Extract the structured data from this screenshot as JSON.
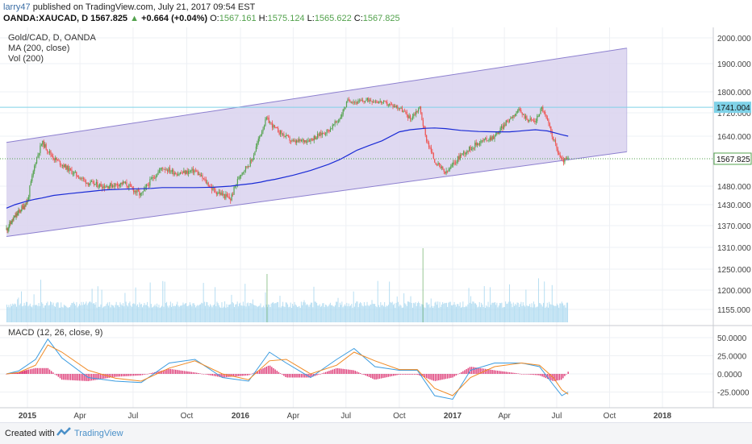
{
  "header": {
    "author": "larry47",
    "published": "published on TradingView.com, July 21, 2017 09:54 EST",
    "symbol": "OANDA:XAUCAD, D",
    "last": "1567.825",
    "change": "+0.664 (+0.04%)",
    "o_label": "O:",
    "o": "1567.161",
    "h_label": "H:",
    "h": "1575.124",
    "l_label": "L:",
    "l": "1565.622",
    "c_label": "C:",
    "c": "1567.825"
  },
  "legend": {
    "line1": "Gold/CAD, D, OANDA",
    "line2": "MA (200, close)",
    "line3": "Vol (200)",
    "macd": "MACD (12, 26, close, 9)"
  },
  "footer": {
    "created_with": "Created with",
    "brand": "TradingView"
  },
  "colors": {
    "channel_fill": "#d9d2ee",
    "channel_line": "#8c7fcf",
    "ma": "#1a2bd6",
    "up": "#53a24d",
    "down": "#ef5350",
    "macd": "#3a9be0",
    "signal": "#f08a24",
    "hist": "#d81b60",
    "hline": "#7fd2e8",
    "volume": "#9fd3ee"
  },
  "chart_data": [
    {
      "type": "line",
      "title": "Gold/CAD, D, OANDA",
      "x_ticks": [
        "2015",
        "Apr",
        "Jul",
        "Oct",
        "2016",
        "Apr",
        "Jul",
        "Oct",
        "2017",
        "Apr",
        "Jul",
        "Oct",
        "2018"
      ],
      "y_ticks": [
        2000,
        1900,
        1800,
        1720,
        1640,
        1480,
        1430,
        1370,
        1310,
        1250,
        1200,
        1155
      ],
      "y_axis_labels": [
        "2000.000",
        "1900.000",
        "1800.000",
        "1720.000",
        "1640.000",
        "1480.000",
        "1430.000",
        "1370.000",
        "1310.000",
        "1250.000",
        "1200.000",
        "1155.000"
      ],
      "x": [
        "2014-11-10",
        "2014-12-01",
        "2015-01-01",
        "2015-01-15",
        "2015-01-26",
        "2015-02-15",
        "2015-03-15",
        "2015-04-15",
        "2015-05-15",
        "2015-06-15",
        "2015-07-15",
        "2015-08-01",
        "2015-08-20",
        "2015-09-15",
        "2015-10-15",
        "2015-11-15",
        "2015-12-15",
        "2016-01-01",
        "2016-01-20",
        "2016-02-05",
        "2016-02-15",
        "2016-03-01",
        "2016-04-01",
        "2016-05-01",
        "2016-06-01",
        "2016-06-20",
        "2016-07-05",
        "2016-07-20",
        "2016-08-10",
        "2016-09-01",
        "2016-10-01",
        "2016-10-20",
        "2016-11-05",
        "2016-11-15",
        "2016-12-01",
        "2016-12-20",
        "2017-01-15",
        "2017-02-15",
        "2017-03-15",
        "2017-04-10",
        "2017-04-25",
        "2017-05-10",
        "2017-05-25",
        "2017-06-05",
        "2017-06-15",
        "2017-07-01",
        "2017-07-10",
        "2017-07-21"
      ],
      "series": [
        {
          "name": "Gold/CAD",
          "values": [
            1360,
            1395,
            1440,
            1560,
            1620,
            1570,
            1530,
            1490,
            1480,
            1490,
            1455,
            1500,
            1540,
            1520,
            1530,
            1470,
            1445,
            1520,
            1560,
            1650,
            1700,
            1665,
            1620,
            1630,
            1660,
            1700,
            1770,
            1760,
            1770,
            1760,
            1740,
            1700,
            1740,
            1640,
            1560,
            1520,
            1580,
            1620,
            1640,
            1700,
            1730,
            1700,
            1690,
            1740,
            1690,
            1600,
            1560,
            1567.825
          ]
        },
        {
          "name": "MA (200, close)",
          "values": [
            1420,
            1430,
            1440,
            1445,
            1448,
            1455,
            1460,
            1465,
            1470,
            1472,
            1473,
            1474,
            1476,
            1476,
            1476,
            1477,
            1480,
            1484,
            1488,
            1493,
            1497,
            1502,
            1515,
            1530,
            1550,
            1565,
            1580,
            1595,
            1610,
            1625,
            1655,
            1662,
            1665,
            1667,
            1668,
            1666,
            1660,
            1656,
            1655,
            1655,
            1657,
            1660,
            1662,
            1660,
            1658,
            1650,
            1645,
            1640
          ]
        }
      ],
      "last_price": 1567.825,
      "horizontal_line": 1741.004,
      "channel": {
        "upper": [
          [
            "2014-11-10",
            1620
          ],
          [
            "2017-10-31",
            1960
          ]
        ],
        "lower": [
          [
            "2014-11-10",
            1340
          ],
          [
            "2017-10-31",
            1590
          ]
        ]
      }
    },
    {
      "type": "bar",
      "title": "Vol (200)",
      "note": "volume histogram"
    },
    {
      "type": "line",
      "title": "MACD (12, 26, close, 9)",
      "y_ticks": [
        50,
        25,
        0,
        -25
      ],
      "y_axis_labels": [
        "50.0000",
        "25.0000",
        "0.0000",
        "-25.0000"
      ],
      "x": [
        "2014-11-10",
        "2014-12-10",
        "2015-01-15",
        "2015-02-05",
        "2015-03-01",
        "2015-04-15",
        "2015-06-01",
        "2015-07-15",
        "2015-09-01",
        "2015-10-15",
        "2015-12-01",
        "2016-01-15",
        "2016-02-20",
        "2016-03-20",
        "2016-05-01",
        "2016-06-15",
        "2016-07-15",
        "2016-08-20",
        "2016-10-01",
        "2016-11-01",
        "2016-12-01",
        "2017-01-01",
        "2017-02-01",
        "2017-03-15",
        "2017-05-01",
        "2017-06-01",
        "2017-06-25",
        "2017-07-10",
        "2017-07-21"
      ],
      "series": [
        {
          "name": "MACD",
          "values": [
            0,
            4,
            20,
            48,
            22,
            -5,
            -10,
            -12,
            15,
            20,
            -5,
            -10,
            30,
            15,
            -5,
            20,
            35,
            10,
            5,
            5,
            -30,
            -35,
            5,
            15,
            15,
            10,
            -15,
            -30,
            -25
          ]
        },
        {
          "name": "Signal",
          "values": [
            0,
            2,
            12,
            40,
            30,
            5,
            -6,
            -10,
            8,
            18,
            0,
            -8,
            18,
            20,
            0,
            12,
            30,
            18,
            6,
            6,
            -20,
            -30,
            -5,
            10,
            15,
            12,
            -5,
            -22,
            -28
          ]
        }
      ]
    }
  ]
}
